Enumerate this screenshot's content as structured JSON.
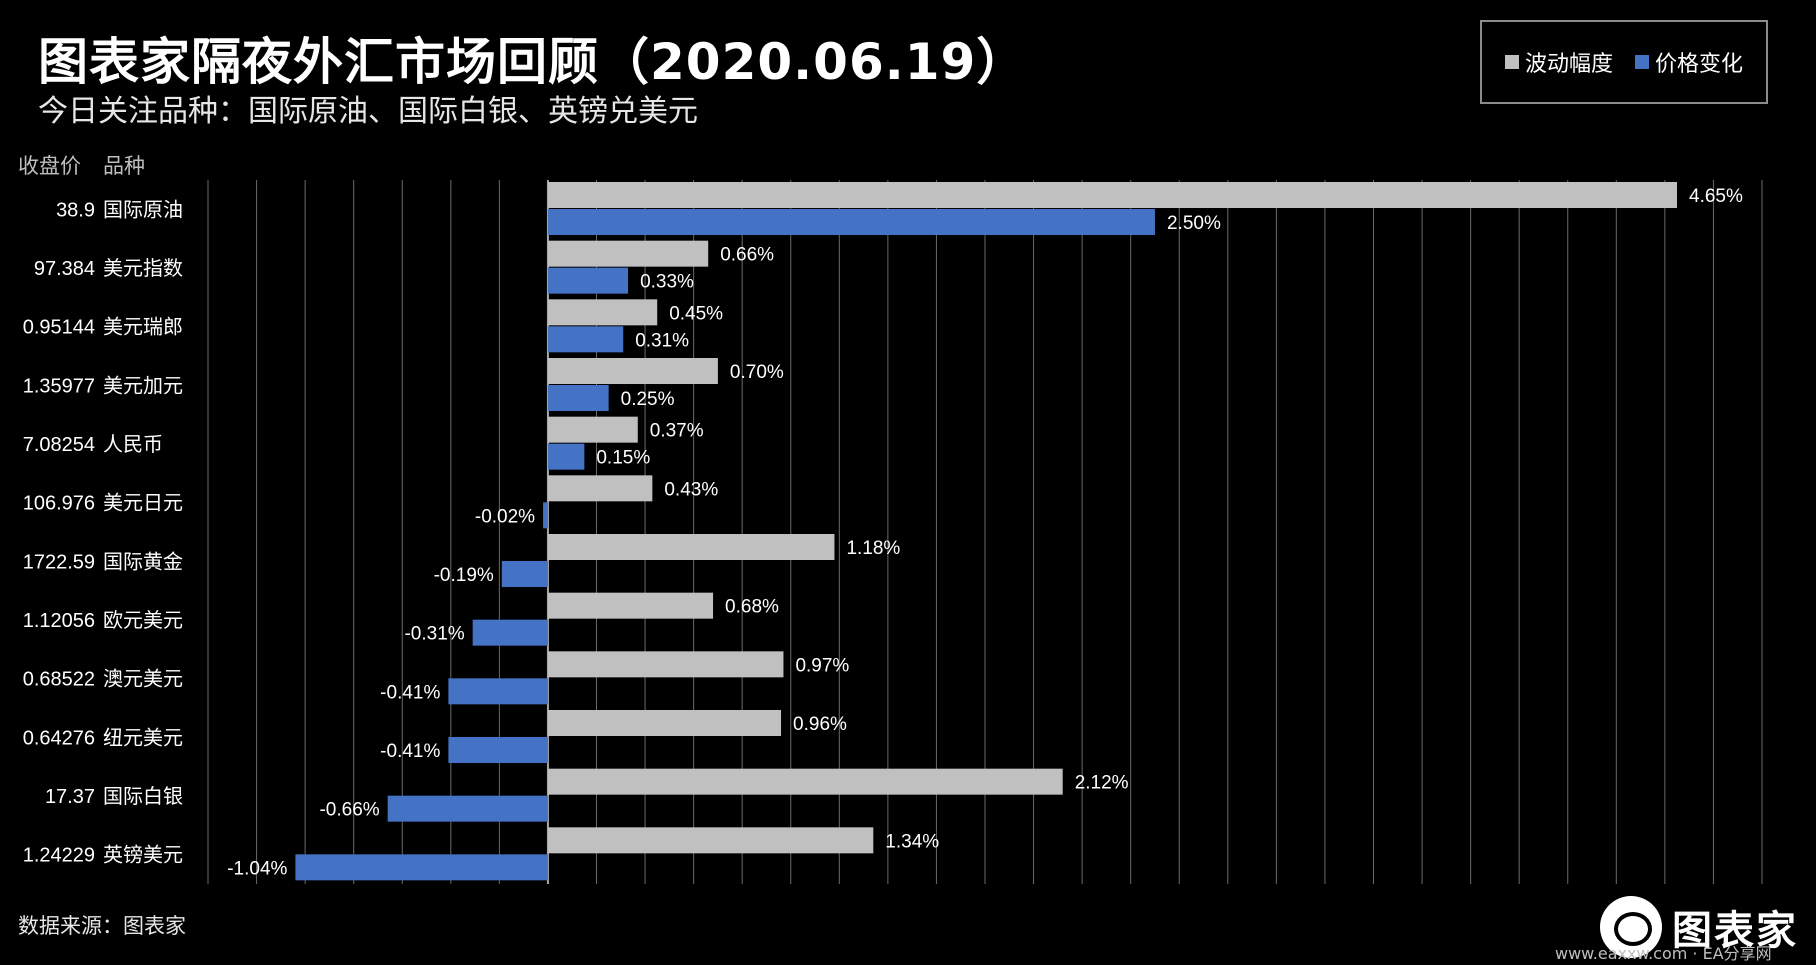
{
  "header": {
    "title": "图表家隔夜外汇市场回顾（2020.06.19）",
    "subtitle": "今日关注品种：国际原油、国际白银、英镑兑美元"
  },
  "legend": {
    "items": [
      {
        "label": "波动幅度",
        "color": "#c0c0c0"
      },
      {
        "label": "价格变化",
        "color": "#4472c4"
      }
    ],
    "position": "top-right"
  },
  "table_headers": {
    "close_price": "收盘价",
    "instrument": "品种"
  },
  "chart_data": {
    "type": "bar",
    "orientation": "horizontal",
    "categories": [
      "国际原油",
      "美元指数",
      "美元瑞郎",
      "美元加元",
      "人民币",
      "美元日元",
      "国际黄金",
      "欧元美元",
      "澳元美元",
      "纽元美元",
      "国际白银",
      "英镑美元"
    ],
    "close_prices": [
      "38.9",
      "97.384",
      "0.95144",
      "1.35977",
      "7.08254",
      "106.976",
      "1722.59",
      "1.12056",
      "0.68522",
      "0.64276",
      "17.37",
      "1.24229"
    ],
    "series": [
      {
        "name": "波动幅度",
        "color": "#c0c0c0",
        "values": [
          4.65,
          0.66,
          0.45,
          0.7,
          0.37,
          0.43,
          1.18,
          0.68,
          0.97,
          0.96,
          2.12,
          1.34
        ],
        "labels": [
          "4.65%",
          "0.66%",
          "0.45%",
          "0.70%",
          "0.37%",
          "0.43%",
          "1.18%",
          "0.68%",
          "0.97%",
          "0.96%",
          "2.12%",
          "1.34%"
        ]
      },
      {
        "name": "价格变化",
        "color": "#4472c4",
        "values": [
          2.5,
          0.33,
          0.31,
          0.25,
          0.15,
          -0.02,
          -0.19,
          -0.31,
          -0.41,
          -0.41,
          -0.66,
          -1.04
        ],
        "labels": [
          "2.50%",
          "0.33%",
          "0.31%",
          "0.25%",
          "0.15%",
          "-0.02%",
          "-0.19%",
          "-0.31%",
          "-0.41%",
          "-0.41%",
          "-0.66%",
          "-1.04%"
        ]
      }
    ],
    "xlim": [
      -1.4,
      5.0
    ],
    "grid": true,
    "unit": "%"
  },
  "footer": {
    "source": "数据来源：图表家",
    "logo_text": "图表家",
    "watermark": "www.eaxxw.com · EA分享网"
  }
}
